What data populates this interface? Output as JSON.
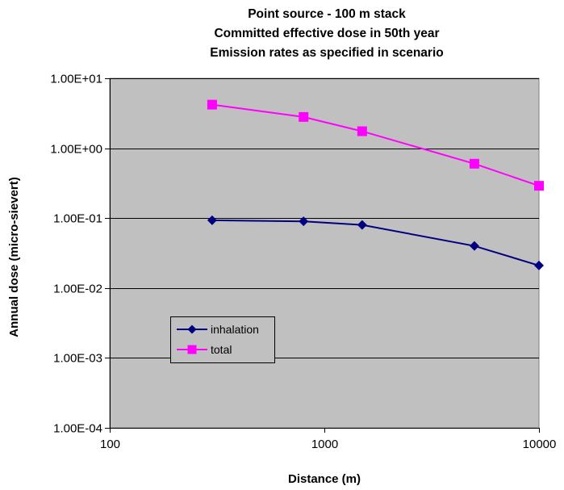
{
  "chart_data": {
    "type": "line",
    "title": [
      "Point source - 100 m stack",
      "Committed effective dose in 50th year",
      "Emission rates as specified in scenario"
    ],
    "xlabel": "Distance (m)",
    "ylabel": "Annual dose (micro-sievert)",
    "x_scale": "log",
    "y_scale": "log",
    "xlim": [
      100,
      10000
    ],
    "ylim": [
      0.0001,
      10
    ],
    "x_ticks": [
      100,
      1000,
      10000
    ],
    "x_tick_labels": [
      "100",
      "1000",
      "10000"
    ],
    "y_ticks": [
      10,
      1,
      0.1,
      0.01,
      0.001,
      0.0001
    ],
    "y_tick_labels": [
      "1.00E+01",
      "1.00E+00",
      "1.00E-01",
      "1.00E-02",
      "1.00E-03",
      "1.00E-04"
    ],
    "grid": "horizontal",
    "plot_background": "#c0c0c0",
    "legend_position": "inside-lower-left",
    "series": [
      {
        "name": "inhalation",
        "color": "#000080",
        "marker": "diamond",
        "x": [
          300,
          800,
          1500,
          5000,
          10000
        ],
        "y": [
          0.093,
          0.09,
          0.08,
          0.04,
          0.021
        ]
      },
      {
        "name": "total",
        "color": "#ff00ff",
        "marker": "square",
        "x": [
          300,
          800,
          1500,
          5000,
          10000
        ],
        "y": [
          4.2,
          2.8,
          1.75,
          0.6,
          0.29
        ]
      }
    ]
  }
}
